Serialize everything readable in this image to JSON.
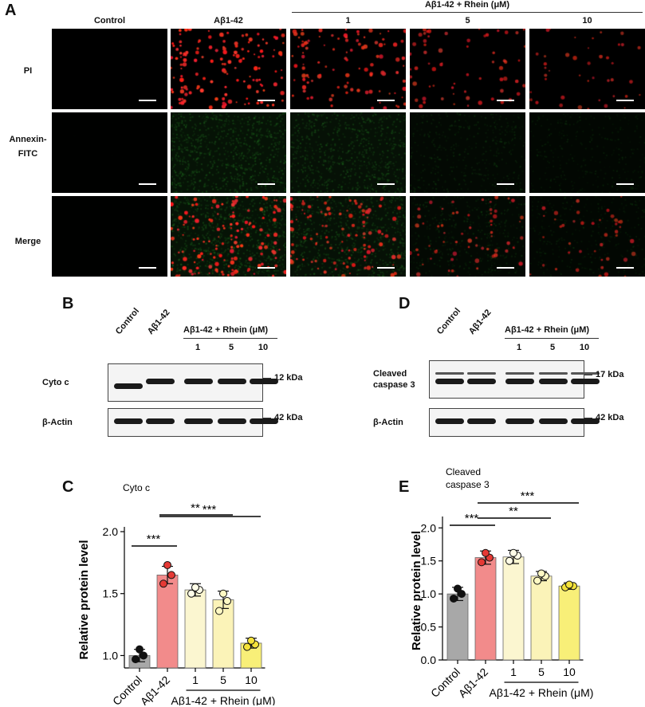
{
  "panel_a": {
    "letter": "A",
    "group_label": "Aβ1-42 + Rhein (μM)",
    "columns": [
      "Control",
      "Aβ1-42",
      "1",
      "5",
      "10"
    ],
    "rows": [
      "PI",
      "Annexin-FITC",
      "Merge"
    ]
  },
  "panel_b": {
    "letter": "B",
    "lanes": [
      "Control",
      "Aβ1-42",
      "1",
      "5",
      "10"
    ],
    "group_label": "Aβ1-42 + Rhein (μM)",
    "blots": [
      {
        "name": "Cyto c",
        "kda": "12 kDa"
      },
      {
        "name": "β-Actin",
        "kda": "42 kDa"
      }
    ]
  },
  "panel_d": {
    "letter": "D",
    "lanes": [
      "Control",
      "Aβ1-42",
      "1",
      "5",
      "10"
    ],
    "group_label": "Aβ1-42 + Rhein (μM)",
    "blots": [
      {
        "name": "Cleaved caspase 3",
        "kda": "17 kDa"
      },
      {
        "name": "β-Actin",
        "kda": "42 kDa"
      }
    ]
  },
  "chart_data": [
    {
      "type": "bar",
      "panel": "C",
      "title": "Cyto c",
      "ylabel": "Relative protein level",
      "categories": [
        "Control",
        "Aβ1-42",
        "1",
        "5",
        "10"
      ],
      "group_label": "Aβ1-42 + Rhein (μM)",
      "values": [
        1.0,
        1.65,
        1.53,
        1.45,
        1.1
      ],
      "errors": [
        0.05,
        0.07,
        0.05,
        0.07,
        0.04
      ],
      "points": [
        [
          0.97,
          1.0,
          1.05
        ],
        [
          1.58,
          1.65,
          1.73
        ],
        [
          1.5,
          1.53,
          1.55
        ],
        [
          1.36,
          1.44,
          1.5
        ],
        [
          1.07,
          1.09,
          1.12
        ]
      ],
      "colors": [
        "#a8a8a8",
        "#f28b8b",
        "#fbf6d0",
        "#fbf3b8",
        "#f8ef78"
      ],
      "dot_colors": [
        "#111111",
        "#e53935",
        "#fffde8",
        "#fff9c4",
        "#f4e23a"
      ],
      "ylim": [
        0.9,
        2.0
      ],
      "yticks": [
        "1.0",
        "1.5",
        "2.0"
      ],
      "significance": [
        {
          "from": 0,
          "to": 1,
          "label": "***"
        },
        {
          "from": 1,
          "to": 3,
          "label": "**"
        },
        {
          "from": 1,
          "to": 4,
          "label": "***"
        }
      ]
    },
    {
      "type": "bar",
      "panel": "E",
      "title": "Cleaved caspase 3",
      "ylabel": "Relative protein level",
      "categories": [
        "Control",
        "Aβ1-42",
        "1",
        "5",
        "10"
      ],
      "group_label": "Aβ1-42 + Rhein (μM)",
      "values": [
        1.0,
        1.55,
        1.56,
        1.27,
        1.12
      ],
      "errors": [
        0.1,
        0.1,
        0.1,
        0.07,
        0.05
      ],
      "points": [
        [
          0.93,
          1.0,
          1.08
        ],
        [
          1.48,
          1.55,
          1.62
        ],
        [
          1.5,
          1.58,
          1.62
        ],
        [
          1.2,
          1.27,
          1.31
        ],
        [
          1.1,
          1.12,
          1.14
        ]
      ],
      "colors": [
        "#a8a8a8",
        "#f28b8b",
        "#fbf6d0",
        "#fbf3b8",
        "#f8ef78"
      ],
      "dot_colors": [
        "#111111",
        "#e53935",
        "#fffde8",
        "#fff9c4",
        "#f4e23a"
      ],
      "ylim": [
        0,
        2.1
      ],
      "yticks": [
        "0.0",
        "0.5",
        "1.0",
        "1.5",
        "2.0"
      ],
      "significance": [
        {
          "from": 0,
          "to": 1,
          "label": "***"
        },
        {
          "from": 1,
          "to": 3,
          "label": "**"
        },
        {
          "from": 1,
          "to": 4,
          "label": "***"
        }
      ]
    }
  ]
}
